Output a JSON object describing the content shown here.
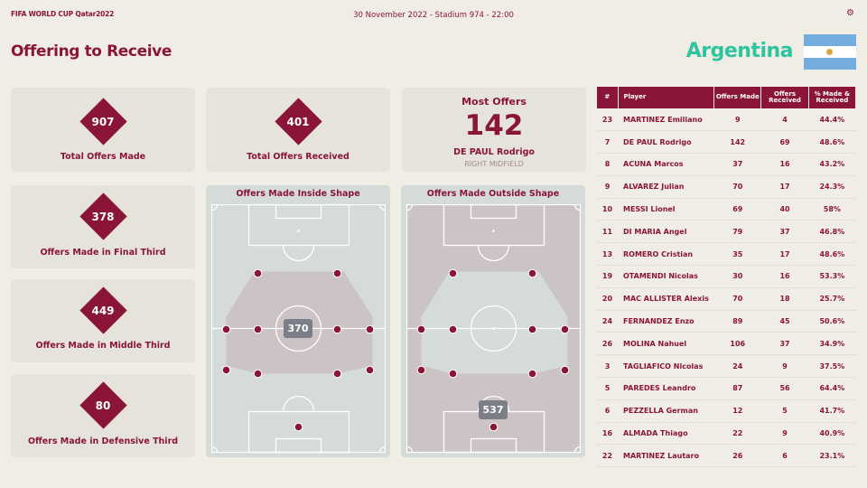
{
  "header": {
    "logo": "FIFA WORLD CUP Qatar2022",
    "match_info": "30 November 2022 - Stadium 974 - 22:00",
    "title": "Offering to Receive",
    "team": "Argentina"
  },
  "colors": {
    "primary": "#8a1538",
    "team": "#2ec4a0",
    "background": "#f0ede4"
  },
  "stats": [
    {
      "value": "907",
      "label": "Total Offers Made"
    },
    {
      "value": "401",
      "label": "Total Offers Received"
    },
    {
      "value": "378",
      "label": "Offers Made in Final Third"
    },
    {
      "value": "449",
      "label": "Offers Made in Middle Third"
    },
    {
      "value": "80",
      "label": "Offers Made in Defensive Third"
    }
  ],
  "most_offers": {
    "title": "Most Offers",
    "value": "142",
    "player": "DE PAUL Rodrigo",
    "position": "RIGHT MIDFIELD"
  },
  "pitches": [
    {
      "title": "Offers Made Inside Shape",
      "value": "370"
    },
    {
      "title": "Offers Made Outside Shape",
      "value": "537"
    }
  ],
  "table": {
    "headers": [
      "#",
      "Player",
      "Offers Made",
      "Offers Received",
      "% Made & Received"
    ],
    "rows": [
      [
        "23",
        "MARTINEZ Emiliano",
        "9",
        "4",
        "44.4%"
      ],
      [
        "7",
        "DE PAUL Rodrigo",
        "142",
        "69",
        "48.6%"
      ],
      [
        "8",
        "ACUNA Marcos",
        "37",
        "16",
        "43.2%"
      ],
      [
        "9",
        "ALVAREZ Julian",
        "70",
        "17",
        "24.3%"
      ],
      [
        "10",
        "MESSI Lionel",
        "69",
        "40",
        "58%"
      ],
      [
        "11",
        "DI MARIA Angel",
        "79",
        "37",
        "46.8%"
      ],
      [
        "13",
        "ROMERO Cristian",
        "35",
        "17",
        "48.6%"
      ],
      [
        "19",
        "OTAMENDI Nicolas",
        "30",
        "16",
        "53.3%"
      ],
      [
        "20",
        "MAC ALLISTER Alexis",
        "70",
        "18",
        "25.7%"
      ],
      [
        "24",
        "FERNANDEZ Enzo",
        "89",
        "45",
        "50.6%"
      ],
      [
        "26",
        "MOLINA Nahuel",
        "106",
        "37",
        "34.9%"
      ],
      [
        "3",
        "TAGLIAFICO Nicolas",
        "24",
        "9",
        "37.5%"
      ],
      [
        "5",
        "PAREDES Leandro",
        "87",
        "56",
        "64.4%"
      ],
      [
        "6",
        "PEZZELLA German",
        "12",
        "5",
        "41.7%"
      ],
      [
        "16",
        "ALMADA Thiago",
        "22",
        "9",
        "40.9%"
      ],
      [
        "22",
        "MARTINEZ Lautaro",
        "26",
        "6",
        "23.1%"
      ]
    ]
  }
}
